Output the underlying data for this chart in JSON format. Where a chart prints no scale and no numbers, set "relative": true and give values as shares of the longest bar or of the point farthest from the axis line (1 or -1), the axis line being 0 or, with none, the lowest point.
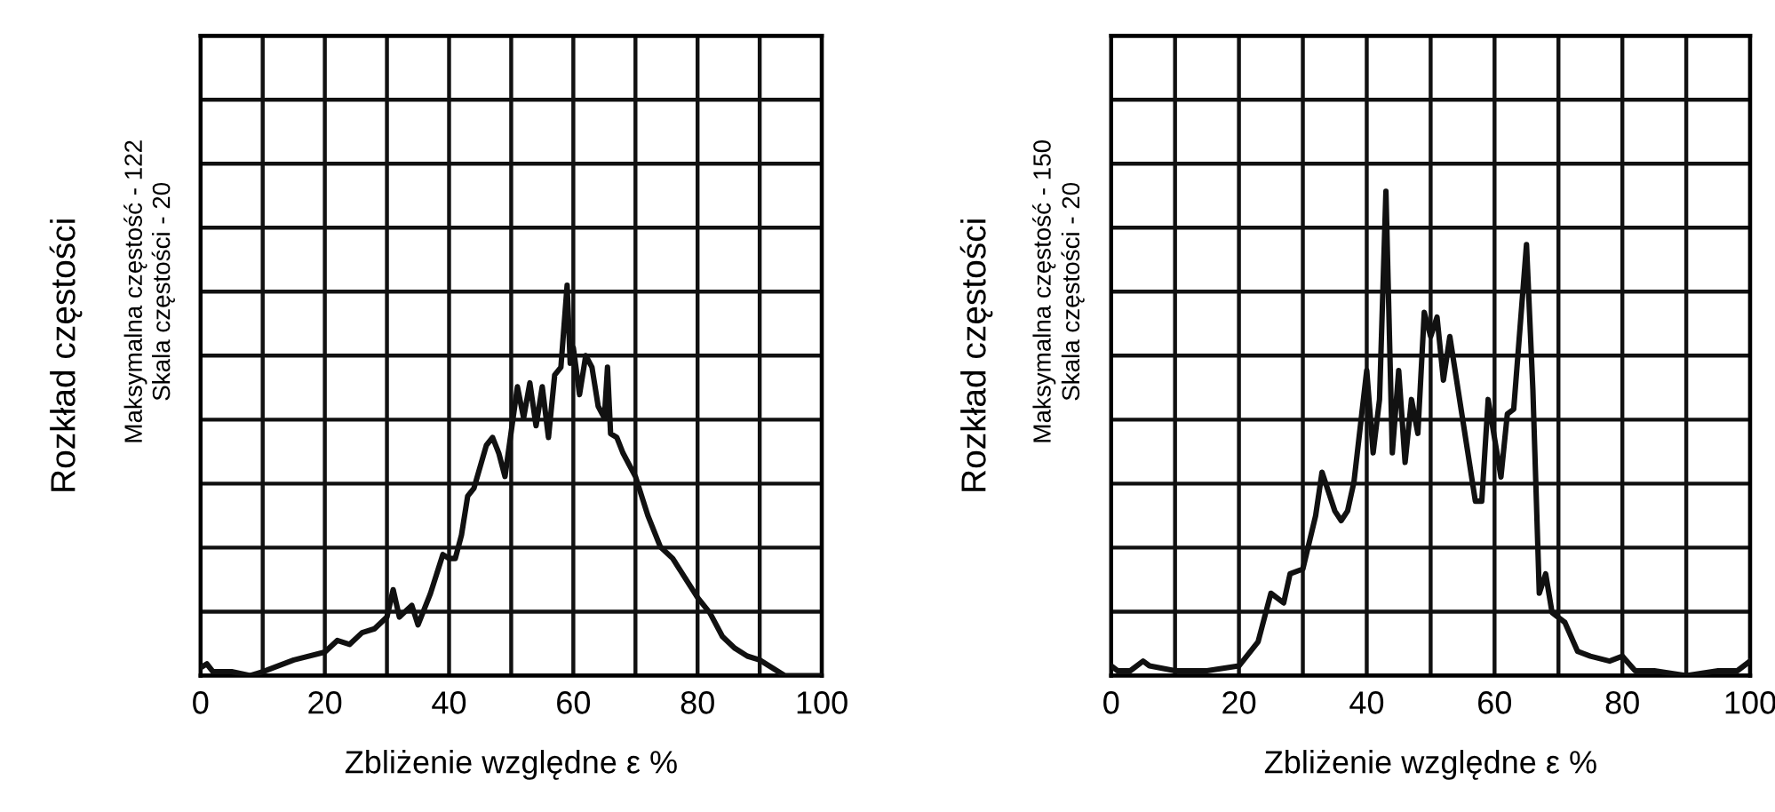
{
  "chart_data": [
    {
      "type": "line",
      "relative": true,
      "xlabel": "Zbliżenie względne ε %",
      "ylabel": "Rozkład częstości",
      "annotations": [
        "Maksymalna częstość - 122",
        "Skala częstości - 20"
      ],
      "xlim": [
        0,
        100
      ],
      "xticks": [
        0,
        {
          "value": 10,
          "label": null
        },
        20,
        {
          "value": 30,
          "label": null
        },
        40,
        {
          "value": 50,
          "label": null
        },
        60,
        {
          "value": 70,
          "label": null
        },
        80,
        {
          "value": 90,
          "label": null
        },
        100
      ],
      "grid": true,
      "tick_labels": "x",
      "series": [
        {
          "color": "#111111",
          "x": [
            0,
            1,
            2,
            5,
            8,
            10,
            15,
            20,
            22,
            24,
            26,
            28,
            30,
            31,
            32,
            34,
            35,
            37,
            39,
            40,
            41,
            42,
            43,
            44,
            46,
            47,
            48,
            49,
            51,
            52,
            53,
            54,
            55,
            56,
            57,
            58,
            59,
            59.5,
            60,
            61,
            62,
            63,
            64,
            65,
            65.5,
            66,
            67,
            68,
            69,
            70,
            72,
            74,
            76,
            78,
            80,
            82,
            84,
            86,
            88,
            90,
            92,
            94,
            96,
            98,
            100
          ],
          "values": [
            0.02,
            0.03,
            0.01,
            0.01,
            0,
            0.01,
            0.04,
            0.06,
            0.09,
            0.08,
            0.11,
            0.12,
            0.15,
            0.22,
            0.15,
            0.18,
            0.13,
            0.21,
            0.31,
            0.3,
            0.3,
            0.36,
            0.46,
            0.48,
            0.59,
            0.61,
            0.57,
            0.51,
            0.74,
            0.66,
            0.75,
            0.64,
            0.74,
            0.61,
            0.77,
            0.79,
            1,
            0.8,
            0.84,
            0.72,
            0.82,
            0.79,
            0.69,
            0.66,
            0.79,
            0.62,
            0.61,
            0.57,
            0.54,
            0.51,
            0.41,
            0.33,
            0.3,
            0.25,
            0.2,
            0.16,
            0.1,
            0.07,
            0.05,
            0.04,
            0.02,
            0,
            0,
            0,
            0
          ]
        }
      ]
    },
    {
      "type": "line",
      "relative": true,
      "xlabel": "Zbliżenie względne ε %",
      "ylabel": "Rozkład częstości",
      "annotations": [
        "Maksymalna częstość - 150",
        "Skala częstości - 20"
      ],
      "xlim": [
        0,
        100
      ],
      "xticks": [
        0,
        {
          "value": 10,
          "label": null
        },
        20,
        {
          "value": 30,
          "label": null
        },
        40,
        {
          "value": 50,
          "label": null
        },
        60,
        {
          "value": 70,
          "label": null
        },
        80,
        {
          "value": 90,
          "label": null
        },
        100
      ],
      "grid": true,
      "tick_labels": "x",
      "series": [
        {
          "color": "#111111",
          "x": [
            0,
            1,
            3,
            5,
            6,
            10,
            15,
            20,
            23,
            25,
            27,
            28,
            30,
            32,
            33,
            35,
            36,
            37,
            38,
            40,
            41,
            42,
            43,
            44,
            45,
            46,
            47,
            48,
            49,
            50,
            51,
            52,
            53,
            55,
            57,
            58,
            59,
            61,
            62,
            63,
            65,
            66,
            67,
            68,
            69,
            71,
            73,
            75,
            78,
            80,
            82,
            85,
            90,
            95,
            98,
            100
          ],
          "values": [
            0.02,
            0.01,
            0.01,
            0.03,
            0.02,
            0.01,
            0.01,
            0.02,
            0.07,
            0.17,
            0.15,
            0.21,
            0.22,
            0.33,
            0.42,
            0.34,
            0.32,
            0.34,
            0.4,
            0.63,
            0.46,
            0.57,
            1,
            0.46,
            0.63,
            0.44,
            0.57,
            0.5,
            0.75,
            0.7,
            0.74,
            0.61,
            0.7,
            0.53,
            0.36,
            0.36,
            0.57,
            0.41,
            0.54,
            0.55,
            0.89,
            0.59,
            0.17,
            0.21,
            0.13,
            0.11,
            0.05,
            0.04,
            0.03,
            0.04,
            0.01,
            0.01,
            0,
            0.01,
            0.01,
            0.03
          ]
        }
      ]
    }
  ]
}
